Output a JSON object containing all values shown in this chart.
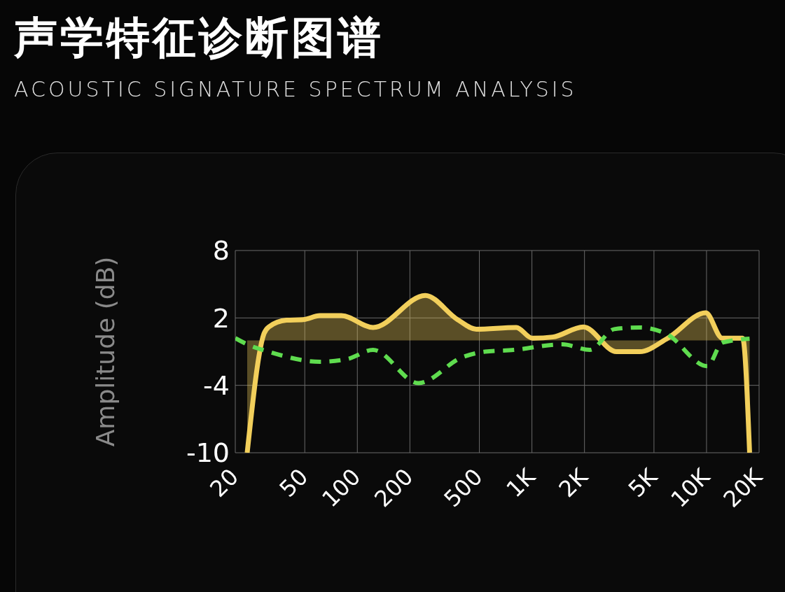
{
  "chart_data": {
    "type": "line",
    "title": "声学特征诊断图谱",
    "subtitle": "ACOUSTIC SIGNATURE SPECTRUM ANALYSIS",
    "ylabel": "Amplitude (dB)",
    "log": "x",
    "grid": true,
    "xlim": [
      20,
      20000
    ],
    "xticks": [
      20,
      50,
      100,
      200,
      500,
      {
        "value": 1000,
        "label": "1K"
      },
      {
        "value": 2000,
        "label": "2K"
      },
      {
        "value": 5000,
        "label": "5K"
      },
      {
        "value": 10000,
        "label": "10K"
      },
      {
        "value": 20000,
        "label": "20K"
      }
    ],
    "ylim": [
      -10,
      8
    ],
    "yticks": [
      8,
      2,
      -4,
      -10
    ],
    "series": [
      {
        "type": "area",
        "color": "#f2cf5b",
        "x": [
          23.4,
          29.2,
          31.1,
          39.3,
          49,
          61,
          81,
          123,
          245,
          375,
          480,
          814,
          1004,
          1315,
          1970,
          3050,
          4140,
          6000,
          9900,
          12300,
          16100,
          17650
        ],
        "values": [
          -10,
          0.6,
          1.2,
          1.8,
          1.85,
          2.2,
          2.2,
          1.15,
          4.0,
          1.85,
          1.0,
          1.15,
          0.2,
          0.3,
          1.2,
          -1.0,
          -1.0,
          0.2,
          2.45,
          0.2,
          0.2,
          -10
        ]
      },
      {
        "color": "#5fdc4f",
        "line_style": "dashed",
        "x": [
          20,
          23.4,
          31,
          61,
          88,
          123,
          224,
          399,
          539,
          784,
          1490,
          2150,
          2960,
          4140,
          5860,
          10100,
          12300,
          17650
        ],
        "values": [
          0.2,
          -0.35,
          -1.0,
          -1.9,
          -1.65,
          -0.85,
          -3.8,
          -1.5,
          -1.0,
          -0.85,
          -0.35,
          -0.85,
          1.0,
          1.15,
          0.6,
          -2.3,
          -0.2,
          0.15
        ]
      }
    ]
  }
}
